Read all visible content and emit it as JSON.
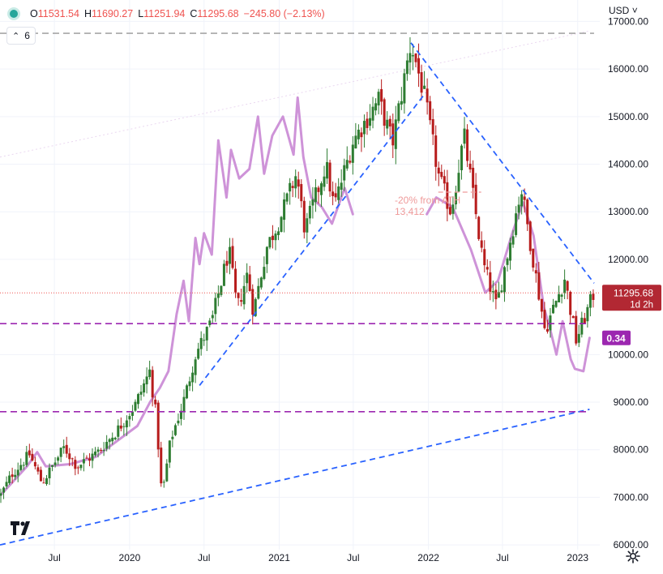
{
  "header": {
    "o_label": "O",
    "o_value": "11531.54",
    "h_label": "H",
    "h_value": "11690.27",
    "l_label": "L",
    "l_value": "11251.94",
    "c_label": "C",
    "c_value": "11295.68",
    "change": "−245.80 (−2.13%)",
    "indicator_count": "6",
    "currency": "USD"
  },
  "price_tag": {
    "value": "11295.68",
    "countdown": "1d 2h",
    "color": "#b22833"
  },
  "indicator_tag": {
    "value": "0.34",
    "color": "#9c27b0"
  },
  "annotation": {
    "line1": "-20% from ATH",
    "line2": "13,412"
  },
  "colors": {
    "up": "#26a69a",
    "down": "#ef5350",
    "candle_up": "#2e7d32",
    "candle_down": "#b71c1c",
    "trend_blue": "#2962ff",
    "overlay": "#ce93d8",
    "purple_dash": "#9c27b0",
    "gray_dash": "#a6a6a6"
  },
  "chart_data": {
    "type": "candlestick",
    "y_axis": {
      "range": [
        5900,
        17450
      ],
      "ticks": [
        "17000.00",
        "16000.00",
        "15000.00",
        "14000.00",
        "13000.00",
        "12000.00",
        "10000.00",
        "9000.00",
        "8000.00",
        "7000.00",
        "6000.00"
      ],
      "tick_values": [
        17000,
        16000,
        15000,
        14000,
        13000,
        12000,
        10000,
        9000,
        8000,
        7000,
        6000
      ]
    },
    "x_axis": {
      "ticks": [
        "Jul",
        "2020",
        "Jul",
        "2021",
        "Jul",
        "2022",
        "Jul",
        "2023"
      ],
      "tick_dates": [
        "2019-07-01",
        "2020-01-01",
        "2020-07-01",
        "2021-01-01",
        "2021-07-01",
        "2022-01-01",
        "2022-07-01",
        "2023-01-01"
      ],
      "range_dates": [
        "2019-02-18",
        "2023-02-24"
      ]
    },
    "weekly_close_path": [
      [
        "2019-02-20",
        7050
      ],
      [
        "2019-03-20",
        7500
      ],
      [
        "2019-05-01",
        7900
      ],
      [
        "2019-06-01",
        7300
      ],
      [
        "2019-07-25",
        8050
      ],
      [
        "2019-08-25",
        7650
      ],
      [
        "2019-10-15",
        7950
      ],
      [
        "2019-12-01",
        8400
      ],
      [
        "2020-01-15",
        8950
      ],
      [
        "2020-02-19",
        9650
      ],
      [
        "2020-03-06",
        8700
      ],
      [
        "2020-03-20",
        7000
      ],
      [
        "2020-04-10",
        8200
      ],
      [
        "2020-05-15",
        9100
      ],
      [
        "2020-06-10",
        10000
      ],
      [
        "2020-07-20",
        10700
      ],
      [
        "2020-08-31",
        12200
      ],
      [
        "2020-09-20",
        10950
      ],
      [
        "2020-10-15",
        11700
      ],
      [
        "2020-10-30",
        10900
      ],
      [
        "2020-12-01",
        12250
      ],
      [
        "2021-01-05",
        12900
      ],
      [
        "2021-02-12",
        13800
      ],
      [
        "2021-03-05",
        12600
      ],
      [
        "2021-04-25",
        14000
      ],
      [
        "2021-05-15",
        13100
      ],
      [
        "2021-07-01",
        14500
      ],
      [
        "2021-09-01",
        15350
      ],
      [
        "2021-10-05",
        14450
      ],
      [
        "2021-11-19",
        16550
      ],
      [
        "2021-12-20",
        15500
      ],
      [
        "2022-01-27",
        13700
      ],
      [
        "2022-02-25",
        13000
      ],
      [
        "2022-03-29",
        14600
      ],
      [
        "2022-05-15",
        11900
      ],
      [
        "2022-06-16",
        11000
      ],
      [
        "2022-08-16",
        13500
      ],
      [
        "2022-10-13",
        10500
      ],
      [
        "2022-11-30",
        11600
      ],
      [
        "2022-12-28",
        10300
      ],
      [
        "2023-02-10",
        11300
      ]
    ],
    "overlay_series": {
      "name": "",
      "points": [
        [
          "2019-02-20",
          7050
        ],
        [
          "2019-04-25",
          7650
        ],
        [
          "2019-05-20",
          7950
        ],
        [
          "2019-06-10",
          7650
        ],
        [
          "2019-08-10",
          7700
        ],
        [
          "2019-10-10",
          7850
        ],
        [
          "2020-01-20",
          8500
        ],
        [
          "2020-02-20",
          9000
        ],
        [
          "2020-03-15",
          9300
        ],
        [
          "2020-04-05",
          9650
        ],
        [
          "2020-04-25",
          10850
        ],
        [
          "2020-05-12",
          11550
        ],
        [
          "2020-05-25",
          10700
        ],
        [
          "2020-06-10",
          12450
        ],
        [
          "2020-06-20",
          11900
        ],
        [
          "2020-07-01",
          12550
        ],
        [
          "2020-07-20",
          12100
        ],
        [
          "2020-08-05",
          14500
        ],
        [
          "2020-08-25",
          13300
        ],
        [
          "2020-09-05",
          14300
        ],
        [
          "2020-09-25",
          13700
        ],
        [
          "2020-10-20",
          13900
        ],
        [
          "2020-11-10",
          15000
        ],
        [
          "2020-11-25",
          13800
        ],
        [
          "2020-12-15",
          14600
        ],
        [
          "2021-01-10",
          15000
        ],
        [
          "2021-02-05",
          14200
        ],
        [
          "2021-02-15",
          15400
        ],
        [
          "2021-03-01",
          14150
        ],
        [
          "2021-03-20",
          13300
        ],
        [
          "2021-04-15",
          13100
        ],
        [
          "2021-05-10",
          12750
        ],
        [
          "2021-06-10",
          13500
        ],
        [
          "2021-06-30",
          12950
        ]
      ]
    },
    "overlay_series_2": {
      "name": "",
      "points": [
        [
          "2021-12-28",
          12950
        ],
        [
          "2022-01-20",
          13300
        ],
        [
          "2022-03-01",
          13100
        ],
        [
          "2022-04-15",
          12200
        ],
        [
          "2022-05-20",
          11300
        ],
        [
          "2022-06-20",
          11550
        ],
        [
          "2022-07-25",
          12550
        ],
        [
          "2022-08-20",
          13200
        ],
        [
          "2022-09-15",
          12500
        ],
        [
          "2022-10-10",
          11000
        ],
        [
          "2022-10-25",
          10550
        ],
        [
          "2022-11-10",
          10000
        ],
        [
          "2022-11-25",
          10700
        ],
        [
          "2022-12-15",
          9900
        ],
        [
          "2022-12-25",
          9700
        ],
        [
          "2023-01-15",
          9650
        ],
        [
          "2023-01-30",
          10350
        ]
      ]
    },
    "trend_lines": [
      {
        "from": [
          "2019-02-18",
          6000
        ],
        "to": [
          "2023-01-30",
          8850
        ],
        "color": "#2962ff"
      },
      {
        "from": [
          "2020-06-20",
          9350
        ],
        "to": [
          "2021-12-25",
          15500
        ],
        "color": "#2962ff"
      },
      {
        "from": [
          "2021-11-19",
          16550
        ],
        "to": [
          "2023-02-10",
          11500
        ],
        "color": "#2962ff"
      }
    ],
    "horizontal_lines": [
      {
        "y": 16750,
        "color": "#a6a6a6",
        "style": "dashed"
      },
      {
        "y": 10650,
        "color": "#9c27b0",
        "style": "dashed"
      },
      {
        "y": 8800,
        "color": "#9c27b0",
        "style": "dashed"
      },
      {
        "y": 11295.68,
        "color": "#ef5350",
        "style": "dotted"
      }
    ]
  }
}
